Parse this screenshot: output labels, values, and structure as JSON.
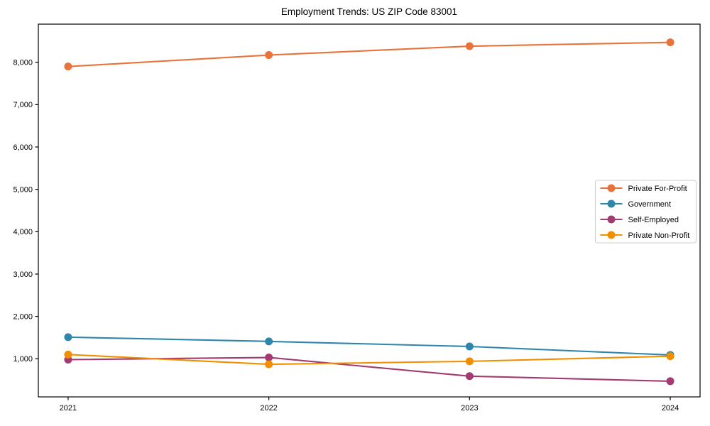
{
  "title": "Employment Trends: US ZIP Code 83001",
  "colors": {
    "background": "#ffffff",
    "axes": "#000000",
    "legend_border": "#cccccc",
    "legend_background": "#ffffff"
  },
  "chart_data": {
    "type": "line",
    "title": "Employment Trends: US ZIP Code 83001",
    "xlabel": "",
    "ylabel": "",
    "x": [
      2021,
      2022,
      2023,
      2024
    ],
    "xtick_labels": [
      "2021",
      "2022",
      "2023",
      "2024"
    ],
    "yticks": [
      1000,
      2000,
      3000,
      4000,
      5000,
      6000,
      7000,
      8000
    ],
    "ytick_labels": [
      "1,000",
      "2,000",
      "3,000",
      "4,000",
      "5,000",
      "6,000",
      "7,000",
      "8,000"
    ],
    "ylim": [
      100,
      8900
    ],
    "grid": false,
    "legend_position": "center-right",
    "marker": "circle",
    "series": [
      {
        "name": "Private For-Profit",
        "color": "#E8743B",
        "values": [
          7900,
          8170,
          8380,
          8470
        ]
      },
      {
        "name": "Government",
        "color": "#2E86AB",
        "values": [
          1510,
          1410,
          1290,
          1090
        ]
      },
      {
        "name": "Self-Employed",
        "color": "#A23B72",
        "values": [
          980,
          1030,
          590,
          470
        ]
      },
      {
        "name": "Private Non-Profit",
        "color": "#F18F01",
        "values": [
          1100,
          870,
          940,
          1060
        ]
      }
    ]
  }
}
